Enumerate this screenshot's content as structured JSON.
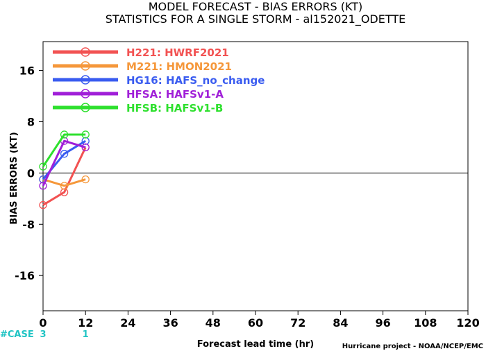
{
  "chart_data": {
    "type": "line",
    "title": "MODEL FORECAST - BIAS ERRORS (KT)",
    "subtitle": "STATISTICS FOR A SINGLE STORM - al152021_ODETTE",
    "xlabel": "Forecast lead time (hr)",
    "ylabel": "BIAS ERRORS (KT)",
    "xlim": [
      0,
      120
    ],
    "ylim": [
      -21.5,
      20.5
    ],
    "xticks": [
      0,
      12,
      24,
      36,
      48,
      60,
      72,
      84,
      96,
      108,
      120
    ],
    "yticks": [
      -16,
      -8,
      0,
      8,
      16
    ],
    "zero_line": true,
    "legend_position": "top-left",
    "series": [
      {
        "name": "H221:  HWRF2021",
        "color": "#f25252",
        "x": [
          0,
          6,
          12
        ],
        "y": [
          -5,
          -3,
          4
        ]
      },
      {
        "name": "M221:  HMON2021",
        "color": "#f5973a",
        "x": [
          0,
          6,
          12
        ],
        "y": [
          -1,
          -2,
          -1
        ]
      },
      {
        "name": "HG16:  HAFS_no_change",
        "color": "#3a5cf0",
        "x": [
          0,
          6,
          12
        ],
        "y": [
          -1,
          3,
          5
        ]
      },
      {
        "name": "HFSA:  HAFSv1-A",
        "color": "#a01fd8",
        "x": [
          0,
          6,
          12
        ],
        "y": [
          -2,
          5,
          4
        ]
      },
      {
        "name": "HFSB:  HAFSv1-B",
        "color": "#2ee02e",
        "x": [
          0,
          6,
          12
        ],
        "y": [
          1,
          6,
          6
        ]
      }
    ],
    "cases": {
      "label": "#CASE",
      "values": [
        {
          "x": 0,
          "count": "3"
        },
        {
          "x": 12,
          "count": "1"
        }
      ]
    },
    "credit": "Hurricane project - NOAA/NCEP/EMC"
  }
}
